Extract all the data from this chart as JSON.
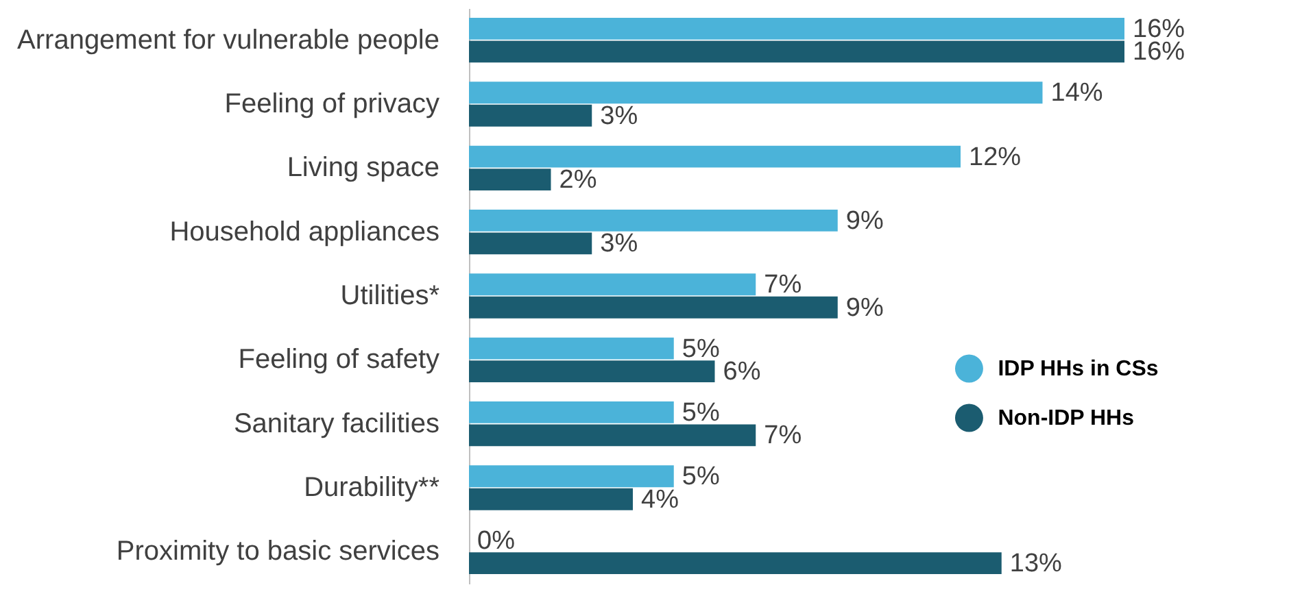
{
  "chart_data": {
    "type": "bar",
    "orientation": "horizontal",
    "categories": [
      "Arrangement for vulnerable people",
      "Feeling of privacy",
      "Living space",
      "Household appliances",
      "Utilities*",
      "Feeling of safety",
      "Sanitary facilities",
      "Durability**",
      "Proximity to basic services"
    ],
    "series": [
      {
        "name": "IDP HHs in CSs",
        "color": "#4bb3d9",
        "values": [
          16,
          14,
          12,
          9,
          7,
          5,
          5,
          5,
          0
        ],
        "value_labels": [
          "16%",
          "14%",
          "12%",
          "9%",
          "7%",
          "5%",
          "5%",
          "5%",
          "0%"
        ]
      },
      {
        "name": "Non-IDP HHs",
        "color": "#1b5c70",
        "values": [
          16,
          3,
          2,
          3,
          9,
          6,
          7,
          4,
          13
        ],
        "value_labels": [
          "16%",
          "3%",
          "2%",
          "3%",
          "9%",
          "6%",
          "7%",
          "4%",
          "13%"
        ]
      }
    ],
    "legend": "right",
    "grid": false
  }
}
